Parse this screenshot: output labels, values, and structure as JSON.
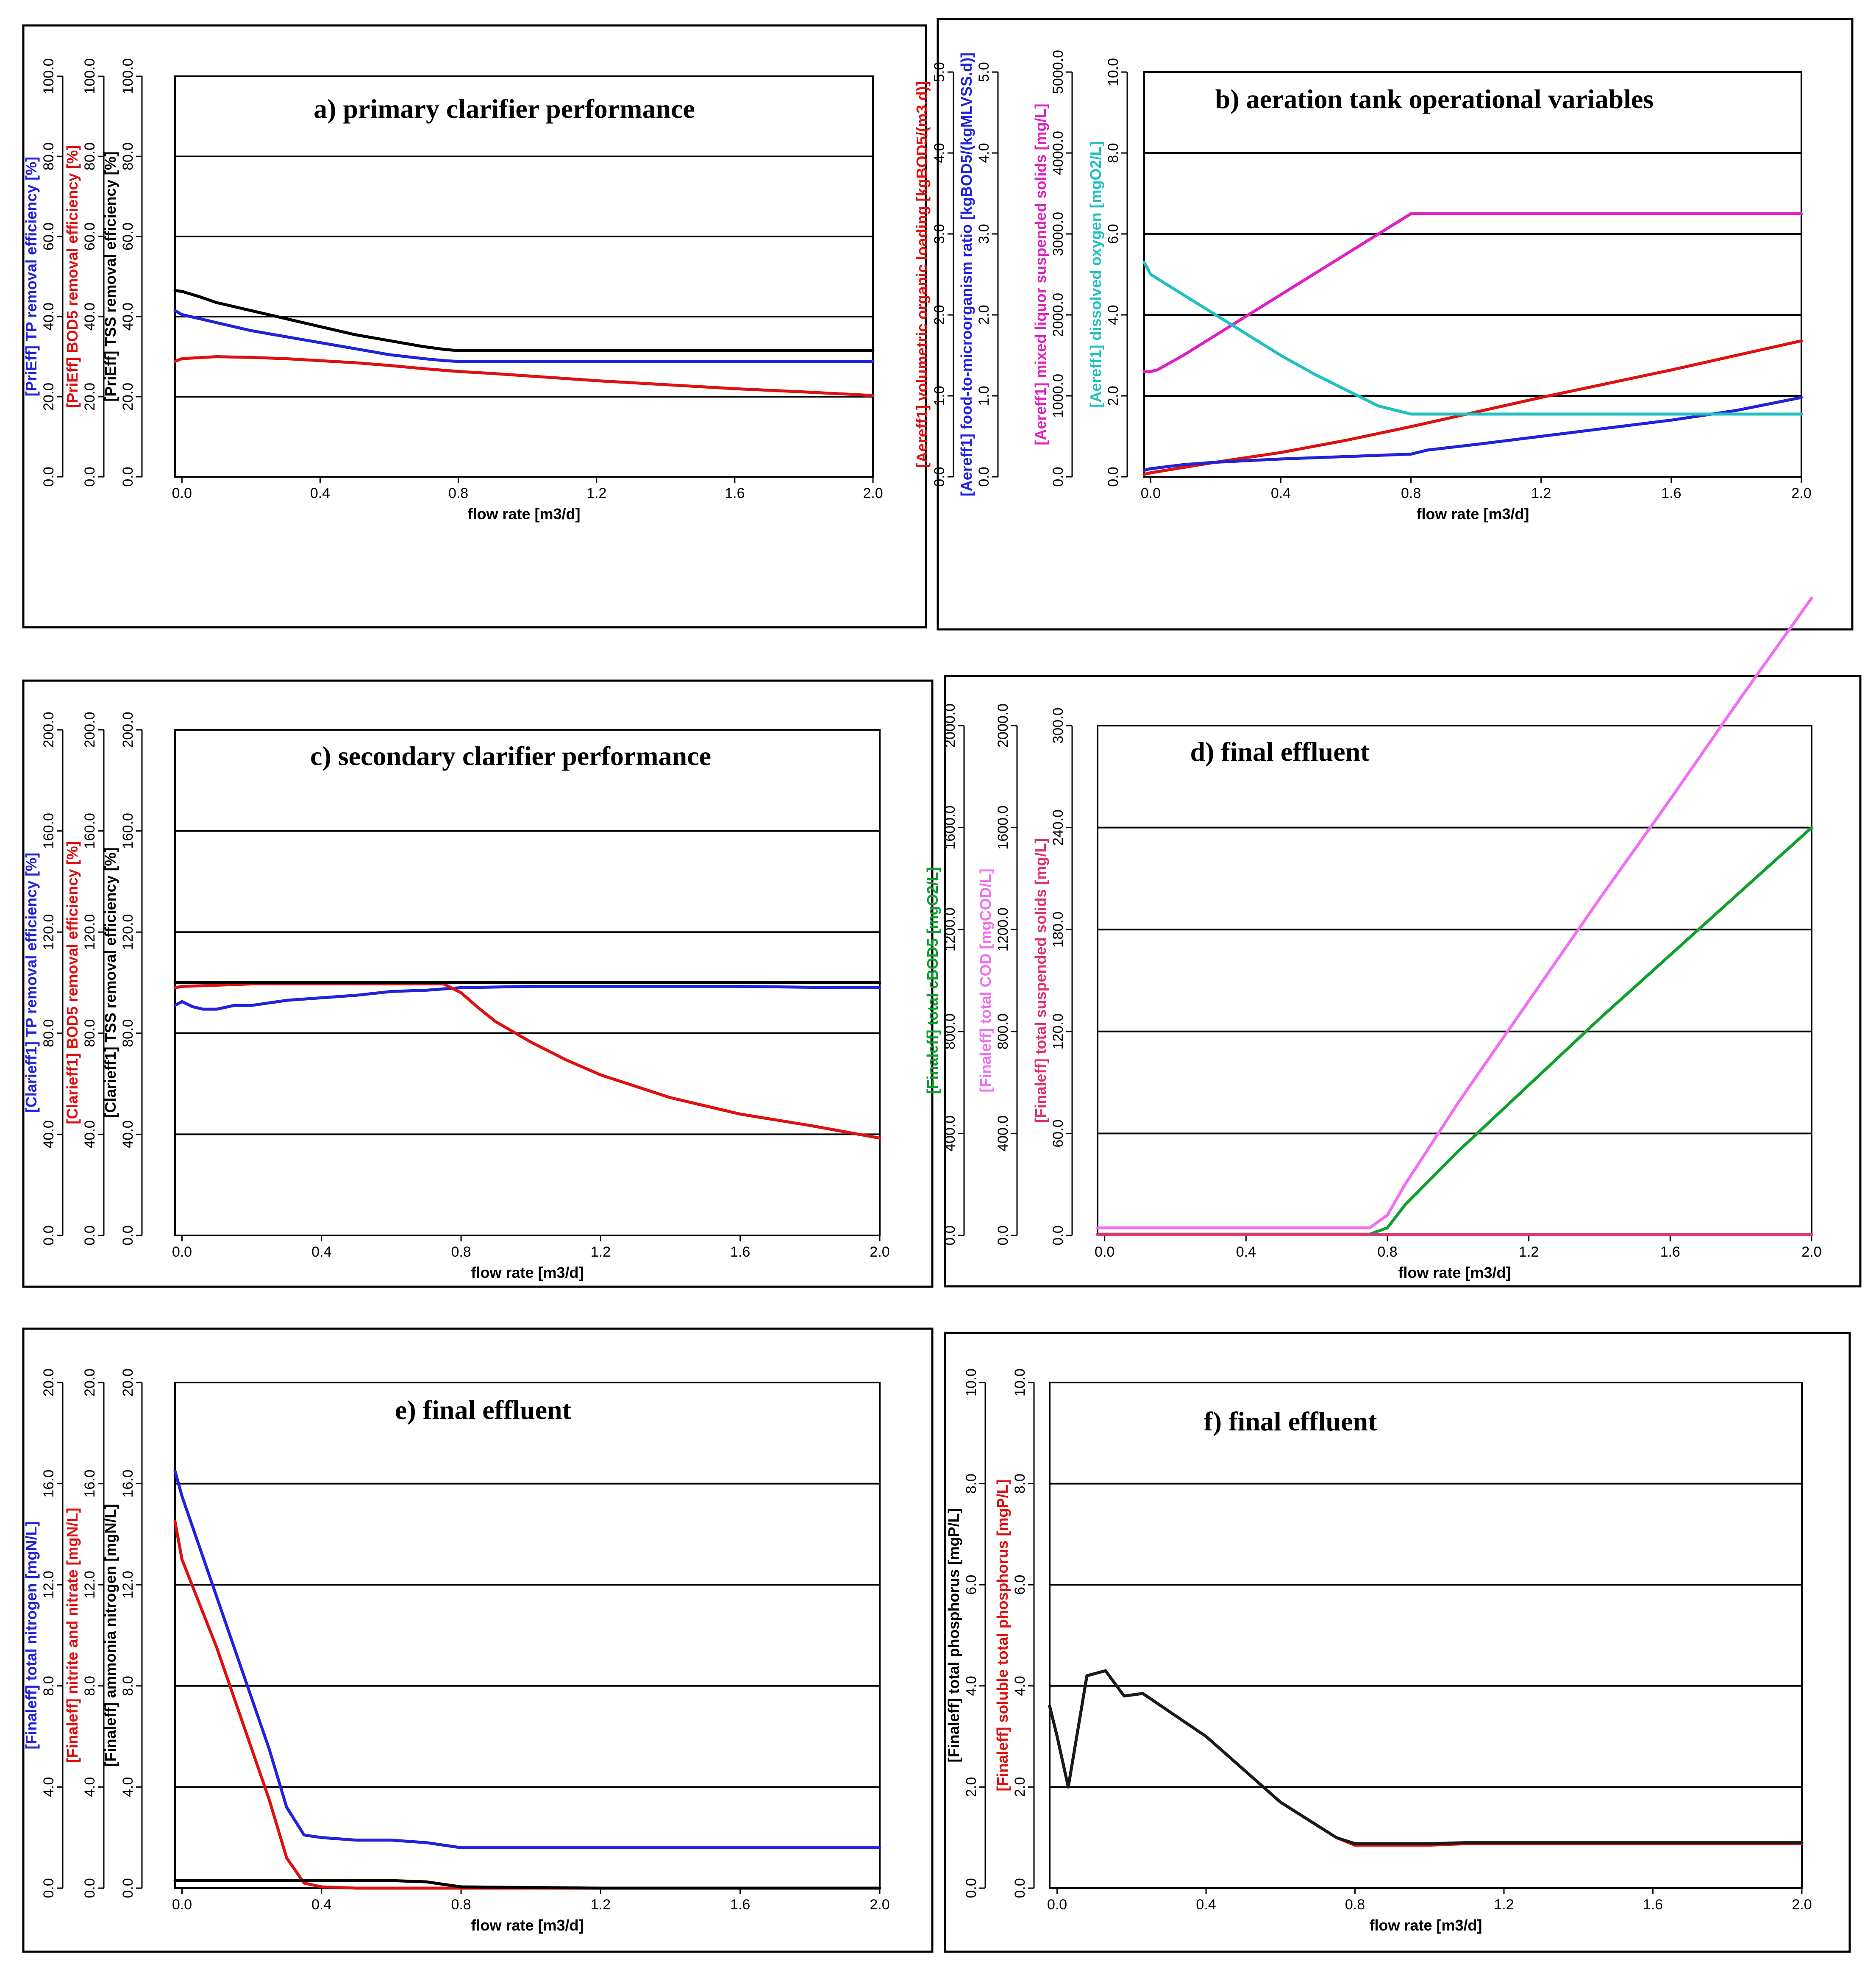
{
  "chart_data": [
    {
      "id": "a",
      "type": "line",
      "title": "a) primary clarifier performance",
      "xlabel": "flow rate [m3/d]",
      "xlim": [
        -0.02,
        2.0
      ],
      "x_ticks": [
        "0.0",
        "0.4",
        "0.8",
        "1.2",
        "1.6",
        "2.0"
      ],
      "y_axes": [
        {
          "label": "[PriEff] TP removal efficiency [%]",
          "color": "#2222dd",
          "ylim": [
            0,
            100
          ],
          "ticks": [
            "0.0",
            "20.0",
            "40.0",
            "60.0",
            "80.0",
            "100.0"
          ]
        },
        {
          "label": "[PriEff] BOD5 removal efficiency [%]",
          "color": "#e01010",
          "ylim": [
            0,
            100
          ],
          "ticks": [
            "0.0",
            "20.0",
            "40.0",
            "60.0",
            "80.0",
            "100.0"
          ]
        },
        {
          "label": "[PriEff] TSS removal efficiency [%]",
          "color": "#000000",
          "ylim": [
            0,
            100
          ],
          "ticks": [
            "0.0",
            "20.0",
            "40.0",
            "60.0",
            "80.0",
            "100.0"
          ]
        }
      ],
      "series": [
        {
          "name": "TP removal efficiency",
          "axis": 0,
          "color": "#2222dd",
          "x": [
            -0.02,
            0.0,
            0.05,
            0.1,
            0.2,
            0.3,
            0.4,
            0.5,
            0.6,
            0.7,
            0.76,
            0.8,
            1.0,
            1.2,
            1.6,
            2.0
          ],
          "y": [
            41.5,
            40.5,
            39.5,
            38.5,
            36.5,
            35.0,
            33.5,
            32.0,
            30.5,
            29.5,
            29.0,
            28.8,
            28.8,
            28.8,
            28.8,
            28.8
          ]
        },
        {
          "name": "BOD5 removal efficiency",
          "axis": 1,
          "color": "#e01010",
          "x": [
            -0.02,
            0.0,
            0.1,
            0.2,
            0.3,
            0.4,
            0.5,
            0.6,
            0.7,
            0.8,
            0.9,
            1.0,
            1.2,
            1.4,
            1.6,
            1.8,
            2.0
          ],
          "y": [
            28.8,
            29.5,
            30.0,
            29.8,
            29.5,
            29.0,
            28.5,
            27.8,
            27.0,
            26.3,
            25.8,
            25.2,
            24.0,
            23.0,
            22.0,
            21.2,
            20.3
          ]
        },
        {
          "name": "TSS removal efficiency",
          "axis": 2,
          "color": "#000000",
          "x": [
            -0.02,
            0.0,
            0.05,
            0.1,
            0.2,
            0.3,
            0.4,
            0.5,
            0.6,
            0.7,
            0.76,
            0.8,
            1.0,
            1.2,
            1.6,
            2.0
          ],
          "y": [
            46.5,
            46.3,
            45.0,
            43.5,
            41.5,
            39.5,
            37.5,
            35.5,
            34.0,
            32.5,
            31.8,
            31.5,
            31.5,
            31.5,
            31.5,
            31.5
          ]
        }
      ]
    },
    {
      "id": "b",
      "type": "line",
      "title": "b) aeration tank operational variables",
      "xlabel": "flow rate [m3/d]",
      "xlim": [
        -0.02,
        2.0
      ],
      "x_ticks": [
        "0.0",
        "0.4",
        "0.8",
        "1.2",
        "1.6",
        "2.0"
      ],
      "y_axes": [
        {
          "label": "[Aereff1] volumetric organic loading [kgBOD5/(m3.d)]",
          "color": "#e01010",
          "ylim": [
            0,
            5
          ],
          "ticks": [
            "0.0",
            "1.0",
            "2.0",
            "3.0",
            "4.0",
            "5.0"
          ]
        },
        {
          "label": "[Aereff1] food-to-microorganism ratio [kgBOD5/(kgMLVSS.d)]",
          "color": "#2222dd",
          "ylim": [
            0,
            5
          ],
          "ticks": [
            "0.0",
            "1.0",
            "2.0",
            "3.0",
            "4.0",
            "5.0"
          ]
        },
        {
          "label": "[Aereff1] mixed liquor suspended solids [mg/L]",
          "color": "#e020c0",
          "ylim": [
            0,
            5000
          ],
          "ticks": [
            "0.0",
            "1000.0",
            "2000.0",
            "3000.0",
            "4000.0",
            "5000.0"
          ]
        },
        {
          "label": "[Aereff1] dissolved oxygen [mgO2/L]",
          "color": "#20c0c0",
          "ylim": [
            0,
            10
          ],
          "ticks": [
            "0.0",
            "2.0",
            "4.0",
            "6.0",
            "8.0",
            "10.0"
          ]
        }
      ],
      "series": [
        {
          "name": "volumetric organic loading",
          "axis": 0,
          "color": "#e01010",
          "x": [
            -0.02,
            0.0,
            0.2,
            0.4,
            0.6,
            0.8,
            1.0,
            1.2,
            1.4,
            1.6,
            1.8,
            2.0
          ],
          "y": [
            0.03,
            0.05,
            0.18,
            0.3,
            0.45,
            0.62,
            0.8,
            0.98,
            1.15,
            1.32,
            1.5,
            1.68
          ]
        },
        {
          "name": "food-to-microorganism ratio",
          "axis": 1,
          "color": "#2222dd",
          "x": [
            -0.02,
            0.0,
            0.1,
            0.2,
            0.3,
            0.4,
            0.6,
            0.8,
            0.85,
            1.0,
            1.2,
            1.4,
            1.6,
            1.8,
            2.0
          ],
          "y": [
            0.08,
            0.1,
            0.15,
            0.18,
            0.2,
            0.22,
            0.25,
            0.28,
            0.33,
            0.4,
            0.5,
            0.6,
            0.7,
            0.82,
            0.98
          ]
        },
        {
          "name": "mixed liquor suspended solids",
          "axis": 2,
          "color": "#e020c0",
          "x": [
            -0.02,
            0.0,
            0.02,
            0.1,
            0.2,
            0.3,
            0.4,
            0.5,
            0.6,
            0.7,
            0.8,
            1.0,
            1.2,
            1.4,
            1.6,
            1.8,
            2.0
          ],
          "y": [
            1300,
            1300,
            1320,
            1500,
            1750,
            2000,
            2250,
            2500,
            2750,
            3000,
            3250,
            3250,
            3250,
            3250,
            3250,
            3250,
            3250
          ]
        },
        {
          "name": "dissolved oxygen",
          "axis": 3,
          "color": "#20c0c0",
          "x": [
            -0.02,
            0.0,
            0.1,
            0.2,
            0.3,
            0.4,
            0.5,
            0.6,
            0.7,
            0.8,
            1.0,
            1.2,
            1.4,
            1.6,
            1.8,
            2.0
          ],
          "y": [
            5.3,
            5.0,
            4.5,
            4.0,
            3.5,
            3.0,
            2.55,
            2.15,
            1.75,
            1.55,
            1.55,
            1.55,
            1.55,
            1.55,
            1.55,
            1.55
          ]
        }
      ]
    },
    {
      "id": "c",
      "type": "line",
      "title": "c) secondary clarifier performance",
      "xlabel": "flow rate [m3/d]",
      "xlim": [
        -0.02,
        2.0
      ],
      "x_ticks": [
        "0.0",
        "0.4",
        "0.8",
        "1.2",
        "1.6",
        "2.0"
      ],
      "y_axes": [
        {
          "label": "[Clarieff1] TP removal efficiency [%]",
          "color": "#2222dd",
          "ylim": [
            0,
            200
          ],
          "ticks": [
            "0.0",
            "40.0",
            "80.0",
            "120.0",
            "160.0",
            "200.0"
          ]
        },
        {
          "label": "[Clarieff1] BOD5 removal efficiency [%]",
          "color": "#e01010",
          "ylim": [
            0,
            200
          ],
          "ticks": [
            "0.0",
            "40.0",
            "80.0",
            "120.0",
            "160.0",
            "200.0"
          ]
        },
        {
          "label": "[Clarieff1] TSS removal efficiency [%]",
          "color": "#000000",
          "ylim": [
            0,
            200
          ],
          "ticks": [
            "0.0",
            "40.0",
            "80.0",
            "120.0",
            "160.0",
            "200.0"
          ]
        }
      ],
      "series": [
        {
          "name": "TP removal efficiency",
          "axis": 0,
          "color": "#2222dd",
          "x": [
            -0.02,
            0.0,
            0.03,
            0.06,
            0.1,
            0.15,
            0.2,
            0.3,
            0.4,
            0.5,
            0.6,
            0.7,
            0.8,
            1.0,
            1.2,
            1.6,
            1.9,
            2.0
          ],
          "y": [
            91.0,
            92.5,
            90.5,
            89.5,
            89.5,
            91.0,
            91.0,
            93.0,
            94.0,
            95.0,
            96.5,
            97.0,
            98.0,
            98.5,
            98.5,
            98.5,
            98.0,
            98.0
          ]
        },
        {
          "name": "BOD5 removal efficiency",
          "axis": 1,
          "color": "#e01010",
          "x": [
            -0.02,
            0.0,
            0.1,
            0.2,
            0.4,
            0.6,
            0.75,
            0.8,
            0.85,
            0.9,
            1.0,
            1.1,
            1.2,
            1.4,
            1.6,
            1.8,
            2.0
          ],
          "y": [
            98.0,
            98.5,
            99.0,
            99.5,
            99.5,
            99.5,
            99.5,
            96.0,
            90.0,
            84.5,
            76.5,
            69.5,
            63.5,
            54.5,
            48.0,
            43.5,
            38.5
          ]
        },
        {
          "name": "TSS removal efficiency",
          "axis": 2,
          "color": "#000000",
          "x": [
            -0.02,
            0.0,
            0.4,
            0.8,
            1.2,
            1.6,
            2.0
          ],
          "y": [
            100.0,
            100.0,
            100.0,
            100.0,
            100.0,
            100.0,
            100.0
          ]
        }
      ]
    },
    {
      "id": "d",
      "type": "line",
      "title": "d) final effluent",
      "xlabel": "flow rate [m3/d]",
      "xlim": [
        -0.02,
        2.0
      ],
      "x_ticks": [
        "0.0",
        "0.4",
        "0.8",
        "1.2",
        "1.6",
        "2.0"
      ],
      "y_axes": [
        {
          "label": "[Finaleff] total cBOD5 [mgO2/L]",
          "color": "#10a030",
          "ylim": [
            0,
            2000
          ],
          "ticks": [
            "0.0",
            "400.0",
            "800.0",
            "1200.0",
            "1600.0",
            "2000.0"
          ]
        },
        {
          "label": "[Finaleff] total COD [mgCOD/L]",
          "color": "#f070f0",
          "ylim": [
            0,
            2000
          ],
          "ticks": [
            "0.0",
            "400.0",
            "800.0",
            "1200.0",
            "1600.0",
            "2000.0"
          ]
        },
        {
          "label": "[Finaleff] total suspended solids [mg/L]",
          "color": "#e03070",
          "ylim": [
            0,
            300
          ],
          "ticks": [
            "0.0",
            "60.0",
            "120.0",
            "180.0",
            "240.0",
            "300.0"
          ]
        }
      ],
      "series": [
        {
          "name": "total cBOD5",
          "axis": 0,
          "color": "#10a030",
          "x": [
            -0.02,
            0.0,
            0.4,
            0.75,
            0.8,
            0.85,
            1.0,
            1.2,
            1.4,
            1.6,
            1.8,
            2.0
          ],
          "y": [
            5,
            5,
            5,
            5,
            30,
            120,
            330,
            590,
            850,
            1100,
            1350,
            1600
          ]
        },
        {
          "name": "total COD",
          "axis": 1,
          "color": "#f070f0",
          "x": [
            -0.02,
            0.0,
            0.4,
            0.75,
            0.8,
            0.85,
            1.0,
            1.2,
            1.4,
            1.6,
            1.8,
            2.0
          ],
          "y": [
            30,
            30,
            30,
            30,
            80,
            200,
            520,
            920,
            1320,
            1710,
            2110,
            2500
          ]
        },
        {
          "name": "total suspended solids",
          "axis": 2,
          "color": "#e03070",
          "x": [
            -0.02,
            0.0,
            0.4,
            0.8,
            1.2,
            1.6,
            2.0
          ],
          "y": [
            0.5,
            0.5,
            0.5,
            0.5,
            0.5,
            0.5,
            0.5
          ]
        }
      ]
    },
    {
      "id": "e",
      "type": "line",
      "title": "e) final effluent",
      "xlabel": "flow rate [m3/d]",
      "xlim": [
        -0.02,
        2.0
      ],
      "x_ticks": [
        "0.0",
        "0.4",
        "0.8",
        "1.2",
        "1.6",
        "2.0"
      ],
      "y_axes": [
        {
          "label": "[Finaleff] total nitrogen [mgN/L]",
          "color": "#2222dd",
          "ylim": [
            0,
            20
          ],
          "ticks": [
            "0.0",
            "4.0",
            "8.0",
            "12.0",
            "16.0",
            "20.0"
          ]
        },
        {
          "label": "[Finaleff] nitrite and nitrate [mgN/L]",
          "color": "#e01010",
          "ylim": [
            0,
            20
          ],
          "ticks": [
            "0.0",
            "4.0",
            "8.0",
            "12.0",
            "16.0",
            "20.0"
          ]
        },
        {
          "label": "[Finaleff] ammonia nitrogen [mgN/L]",
          "color": "#000000",
          "ylim": [
            0,
            20
          ],
          "ticks": [
            "0.0",
            "4.0",
            "8.0",
            "12.0",
            "16.0",
            "20.0"
          ]
        }
      ],
      "series": [
        {
          "name": "total nitrogen",
          "axis": 0,
          "color": "#2222dd",
          "x": [
            -0.02,
            0.0,
            0.1,
            0.2,
            0.25,
            0.3,
            0.35,
            0.4,
            0.5,
            0.6,
            0.7,
            0.8,
            1.2,
            1.6,
            2.0
          ],
          "y": [
            16.5,
            15.5,
            11.5,
            7.5,
            5.5,
            3.2,
            2.1,
            2.0,
            1.9,
            1.9,
            1.8,
            1.6,
            1.6,
            1.6,
            1.6
          ]
        },
        {
          "name": "nitrite and nitrate",
          "axis": 1,
          "color": "#e01010",
          "x": [
            -0.02,
            0.0,
            0.1,
            0.2,
            0.25,
            0.3,
            0.35,
            0.4,
            0.5,
            0.8,
            1.2,
            1.6,
            2.0
          ],
          "y": [
            14.5,
            13.0,
            9.5,
            5.5,
            3.5,
            1.2,
            0.2,
            0.05,
            0.0,
            0.0,
            0.0,
            0.0,
            0.0
          ]
        },
        {
          "name": "ammonia nitrogen",
          "axis": 2,
          "color": "#000000",
          "x": [
            -0.02,
            0.0,
            0.4,
            0.6,
            0.7,
            0.75,
            0.8,
            1.2,
            1.6,
            2.0
          ],
          "y": [
            0.3,
            0.3,
            0.3,
            0.3,
            0.25,
            0.15,
            0.05,
            0.0,
            0.0,
            0.0
          ]
        }
      ]
    },
    {
      "id": "f",
      "type": "line",
      "title": "f) final effluent",
      "xlabel": "flow rate [m3/d]",
      "xlim": [
        -0.02,
        2.0
      ],
      "x_ticks": [
        "0.0",
        "0.4",
        "0.8",
        "1.2",
        "1.6",
        "2.0"
      ],
      "y_axes": [
        {
          "label": "[Finaleff] total phosphorus [mgP/L]",
          "color": "#000000",
          "ylim": [
            0,
            10
          ],
          "ticks": [
            "0.0",
            "2.0",
            "4.0",
            "6.0",
            "8.0",
            "10.0"
          ]
        },
        {
          "label": "[Finaleff] soluble total phosphorus [mgP/L]",
          "color": "#e01010",
          "ylim": [
            0,
            10
          ],
          "ticks": [
            "0.0",
            "2.0",
            "4.0",
            "6.0",
            "8.0",
            "10.0"
          ]
        }
      ],
      "series": [
        {
          "name": "soluble total phosphorus",
          "axis": 1,
          "color": "#e01010",
          "x": [
            -0.02,
            0.0,
            0.03,
            0.08,
            0.13,
            0.18,
            0.23,
            0.4,
            0.6,
            0.75,
            0.8,
            0.9,
            1.0,
            1.1,
            1.2,
            1.6,
            2.0
          ],
          "y": [
            3.6,
            3.0,
            2.0,
            4.2,
            4.3,
            3.8,
            3.85,
            3.0,
            1.7,
            1.0,
            0.85,
            0.85,
            0.85,
            0.88,
            0.88,
            0.88,
            0.88
          ]
        },
        {
          "name": "total phosphorus",
          "axis": 0,
          "color": "#1a1a1a",
          "x": [
            -0.02,
            0.0,
            0.03,
            0.08,
            0.13,
            0.18,
            0.23,
            0.4,
            0.6,
            0.75,
            0.8,
            0.9,
            1.0,
            1.1,
            1.2,
            1.6,
            2.0
          ],
          "y": [
            3.6,
            3.0,
            2.0,
            4.2,
            4.3,
            3.8,
            3.85,
            3.0,
            1.7,
            1.0,
            0.88,
            0.88,
            0.88,
            0.9,
            0.9,
            0.9,
            0.9
          ]
        }
      ]
    }
  ]
}
